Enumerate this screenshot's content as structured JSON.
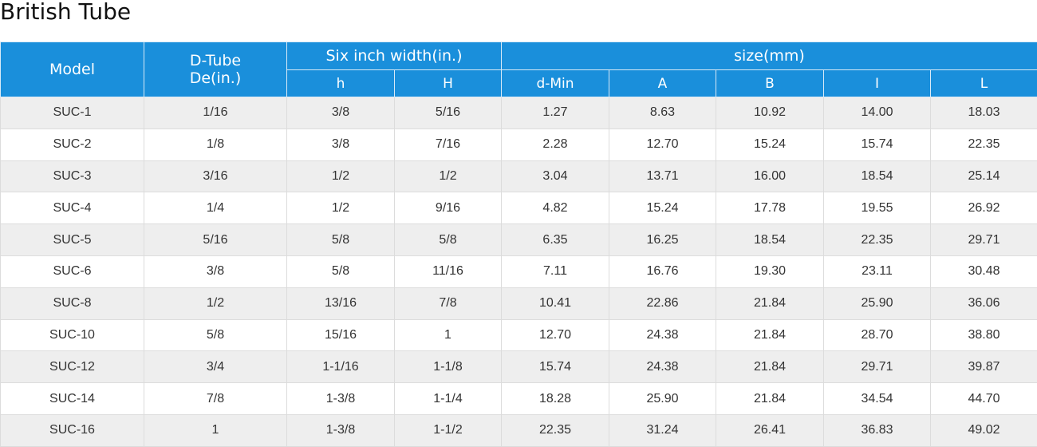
{
  "title": "British Tube",
  "headers": {
    "model": "Model",
    "dtube_line1": "D-Tube",
    "dtube_line2": "De(in.)",
    "six_inch": "Six inch width(in.)",
    "size": "size(mm)",
    "h": "h",
    "H": "H",
    "dmin": "d-Min",
    "A": "A",
    "B": "B",
    "I": "I",
    "L": "L"
  },
  "rows": [
    [
      "SUC-1",
      "1/16",
      "3/8",
      "5/16",
      "1.27",
      "8.63",
      "10.92",
      "14.00",
      "18.03"
    ],
    [
      "SUC-2",
      "1/8",
      "3/8",
      "7/16",
      "2.28",
      "12.70",
      "15.24",
      "15.74",
      "22.35"
    ],
    [
      "SUC-3",
      "3/16",
      "1/2",
      "1/2",
      "3.04",
      "13.71",
      "16.00",
      "18.54",
      "25.14"
    ],
    [
      "SUC-4",
      "1/4",
      "1/2",
      "9/16",
      "4.82",
      "15.24",
      "17.78",
      "19.55",
      "26.92"
    ],
    [
      "SUC-5",
      "5/16",
      "5/8",
      "5/8",
      "6.35",
      "16.25",
      "18.54",
      "22.35",
      "29.71"
    ],
    [
      "SUC-6",
      "3/8",
      "5/8",
      "11/16",
      "7.11",
      "16.76",
      "19.30",
      "23.11",
      "30.48"
    ],
    [
      "SUC-8",
      "1/2",
      "13/16",
      "7/8",
      "10.41",
      "22.86",
      "21.84",
      "25.90",
      "36.06"
    ],
    [
      "SUC-10",
      "5/8",
      "15/16",
      "1",
      "12.70",
      "24.38",
      "21.84",
      "28.70",
      "38.80"
    ],
    [
      "SUC-12",
      "3/4",
      "1-1/16",
      "1-1/8",
      "15.74",
      "24.38",
      "21.84",
      "29.71",
      "39.87"
    ],
    [
      "SUC-14",
      "7/8",
      "1-3/8",
      "1-1/4",
      "18.28",
      "25.90",
      "21.84",
      "34.54",
      "44.70"
    ],
    [
      "SUC-16",
      "1",
      "1-3/8",
      "1-1/2",
      "22.35",
      "31.24",
      "26.41",
      "36.83",
      "49.02"
    ]
  ]
}
